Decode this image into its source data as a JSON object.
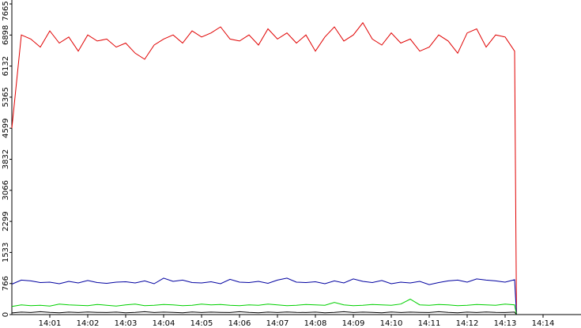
{
  "chart_data": {
    "type": "line",
    "x": [
      0,
      0.25,
      0.5,
      0.75,
      1,
      1.25,
      1.5,
      1.75,
      2,
      2.25,
      2.5,
      2.75,
      3,
      3.25,
      3.5,
      3.75,
      4,
      4.25,
      4.5,
      4.75,
      5,
      5.25,
      5.5,
      5.75,
      6,
      6.25,
      6.5,
      6.75,
      7,
      7.25,
      7.5,
      7.75,
      8,
      8.25,
      8.5,
      8.75,
      9,
      9.25,
      9.5,
      9.75,
      10,
      10.25,
      10.5,
      10.75,
      11,
      11.25,
      11.5,
      11.75,
      12,
      12.25,
      12.5,
      12.75,
      13,
      13.25,
      13.3
    ],
    "series": [
      {
        "color": "#e00000",
        "values": [
          4600,
          6900,
          6800,
          6600,
          7000,
          6700,
          6850,
          6500,
          6900,
          6750,
          6800,
          6600,
          6700,
          6450,
          6300,
          6650,
          6800,
          6900,
          6700,
          7000,
          6850,
          6950,
          7100,
          6800,
          6750,
          6900,
          6650,
          7050,
          6800,
          6950,
          6700,
          6900,
          6500,
          6850,
          7100,
          6750,
          6900,
          7200,
          6800,
          6650,
          6950,
          6700,
          6800,
          6500,
          6600,
          6900,
          6750,
          6450,
          6950,
          7050,
          6600,
          6900,
          6850,
          6500,
          0
        ]
      },
      {
        "color": "#0000a0",
        "values": [
          750,
          850,
          830,
          790,
          800,
          760,
          820,
          780,
          840,
          790,
          770,
          800,
          810,
          780,
          830,
          760,
          900,
          820,
          850,
          790,
          780,
          810,
          760,
          870,
          800,
          790,
          820,
          770,
          850,
          900,
          800,
          790,
          810,
          760,
          830,
          780,
          880,
          820,
          790,
          840,
          760,
          800,
          780,
          820,
          740,
          790,
          830,
          850,
          800,
          880,
          850,
          830,
          800,
          860,
          0
        ]
      },
      {
        "color": "#00d000",
        "values": [
          200,
          240,
          220,
          230,
          210,
          260,
          240,
          230,
          220,
          250,
          230,
          210,
          240,
          260,
          220,
          230,
          250,
          240,
          220,
          230,
          260,
          240,
          250,
          230,
          220,
          240,
          230,
          260,
          240,
          220,
          230,
          250,
          240,
          230,
          300,
          240,
          220,
          230,
          250,
          240,
          230,
          260,
          380,
          240,
          230,
          250,
          240,
          220,
          230,
          250,
          240,
          230,
          260,
          240,
          0
        ]
      },
      {
        "color": "#000000",
        "values": [
          40,
          60,
          50,
          70,
          55,
          45,
          60,
          50,
          65,
          55,
          50,
          60,
          45,
          55,
          70,
          50,
          60,
          55,
          45,
          65,
          50,
          60,
          55,
          50,
          70,
          55,
          45,
          60,
          50,
          65,
          55,
          50,
          60,
          45,
          55,
          70,
          50,
          60,
          55,
          45,
          65,
          50,
          60,
          55,
          50,
          70,
          55,
          45,
          60,
          50,
          65,
          55,
          50,
          60,
          0
        ]
      }
    ],
    "xlim": [
      0,
      15
    ],
    "xticks": [
      {
        "value": 1,
        "label": "14:01"
      },
      {
        "value": 2,
        "label": "14:02"
      },
      {
        "value": 3,
        "label": "14:03"
      },
      {
        "value": 4,
        "label": "14:04"
      },
      {
        "value": 5,
        "label": "14:05"
      },
      {
        "value": 6,
        "label": "14:06"
      },
      {
        "value": 7,
        "label": "14:07"
      },
      {
        "value": 8,
        "label": "14:08"
      },
      {
        "value": 9,
        "label": "14:09"
      },
      {
        "value": 10,
        "label": "14:10"
      },
      {
        "value": 11,
        "label": "14:11"
      },
      {
        "value": 12,
        "label": "14:12"
      },
      {
        "value": 13,
        "label": "14:13"
      },
      {
        "value": 14,
        "label": "14:14"
      }
    ],
    "ylim": [
      0,
      7665
    ],
    "yticks": [
      0,
      766,
      1533,
      2299,
      3066,
      3832,
      4599,
      5365,
      6132,
      6898,
      7665
    ]
  }
}
